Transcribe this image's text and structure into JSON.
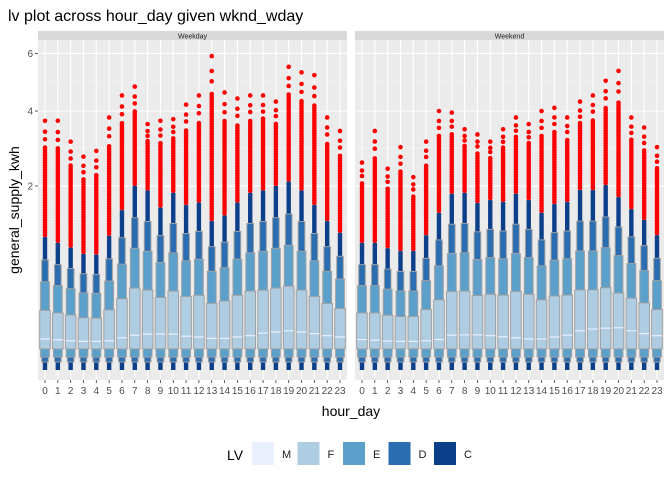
{
  "chart_data": {
    "type": "lv",
    "title": "lv plot across hour_day given wknd_wday",
    "xlabel": "hour_day",
    "ylabel": "general_supply_kwh",
    "y_scale": "sqrt",
    "y_ticks": [
      2,
      4,
      6
    ],
    "y_minor": [
      0.67,
      1.27,
      2.93,
      4.96
    ],
    "x_ticks": [
      "0",
      "1",
      "2",
      "3",
      "4",
      "5",
      "6",
      "7",
      "8",
      "9",
      "10",
      "11",
      "12",
      "13",
      "14",
      "15",
      "16",
      "17",
      "18",
      "19",
      "20",
      "21",
      "22",
      "23"
    ],
    "lower_bounds": {
      "F": 0.02,
      "E": 0.006,
      "D": 0.0015,
      "C": 0
    },
    "level_ratios": {
      "D": 0.68,
      "E": 0.43,
      "F": 0.19
    },
    "panels": [
      {
        "name": "Weekday",
        "c_top": [
          1.03,
          0.94,
          0.87,
          0.78,
          0.77,
          1.05,
          1.5,
          2.0,
          1.9,
          1.55,
          1.85,
          1.6,
          1.65,
          1.3,
          1.4,
          1.65,
          1.85,
          1.9,
          2.0,
          2.1,
          1.9,
          1.6,
          1.3,
          1.1
        ],
        "median": [
          0.048,
          0.045,
          0.042,
          0.04,
          0.04,
          0.042,
          0.052,
          0.062,
          0.066,
          0.066,
          0.066,
          0.058,
          0.055,
          0.05,
          0.05,
          0.055,
          0.06,
          0.07,
          0.075,
          0.08,
          0.075,
          0.068,
          0.06,
          0.055
        ],
        "outlier_max": [
          3.7,
          3.7,
          3.1,
          2.7,
          2.85,
          3.8,
          4.5,
          4.8,
          3.6,
          3.7,
          3.75,
          4.2,
          4.5,
          5.9,
          4.6,
          4.4,
          4.5,
          4.5,
          4.3,
          5.5,
          5.3,
          5.2,
          3.8,
          3.4
        ]
      },
      {
        "name": "Weekend",
        "c_top": [
          0.94,
          0.94,
          0.86,
          0.82,
          0.82,
          1.06,
          1.45,
          1.83,
          1.85,
          1.64,
          1.7,
          1.66,
          1.83,
          1.7,
          1.45,
          1.62,
          1.66,
          1.91,
          1.91,
          2.02,
          1.76,
          1.52,
          1.32,
          1.06
        ],
        "median": [
          0.046,
          0.044,
          0.041,
          0.04,
          0.04,
          0.042,
          0.046,
          0.062,
          0.063,
          0.063,
          0.06,
          0.056,
          0.052,
          0.048,
          0.048,
          0.055,
          0.062,
          0.08,
          0.088,
          0.092,
          0.094,
          0.08,
          0.068,
          0.06
        ],
        "outlier_max": [
          2.55,
          3.4,
          2.4,
          2.95,
          2.2,
          3.1,
          4.0,
          3.95,
          3.45,
          3.3,
          3.1,
          3.45,
          3.8,
          3.6,
          4.0,
          4.1,
          3.8,
          4.3,
          4.5,
          5.0,
          5.35,
          3.8,
          3.5,
          2.95
        ]
      }
    ],
    "legend": {
      "title": "LV",
      "placement": "bottom",
      "entries": [
        {
          "label": "M",
          "color": "#EBF0FE"
        },
        {
          "label": "F",
          "color": "#AECDE2"
        },
        {
          "label": "E",
          "color": "#5B9FCB"
        },
        {
          "label": "D",
          "color": "#2A6DB0"
        },
        {
          "label": "C",
          "color": "#0B3F8A"
        }
      ]
    },
    "outlier_color": "#FF0000"
  }
}
